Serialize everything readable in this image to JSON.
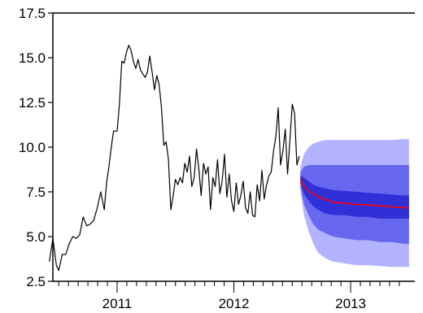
{
  "chart_data": {
    "type": "line",
    "title": "",
    "xlabel": "",
    "ylabel": "",
    "ylim": [
      2.5,
      17.5
    ],
    "yticks": [
      2.5,
      5.0,
      7.5,
      10.0,
      12.5,
      15.0,
      17.5
    ],
    "ytick_labels": [
      "2.5",
      "5.0",
      "7.5",
      "10.0",
      "12.5",
      "15.0",
      "17.5"
    ],
    "xlim": [
      2010.45,
      2013.55
    ],
    "x_year_labels": [
      {
        "label": "2011",
        "x": 2011.0
      },
      {
        "label": "2012",
        "x": 2012.0
      },
      {
        "label": "2013",
        "x": 2013.0
      }
    ],
    "grid": false,
    "legend": "none",
    "colors": {
      "history": "#000000",
      "forecast_median": "#ff0000",
      "band_90": "#b3b3ff",
      "band_70": "#6666ee",
      "band_50": "#3030d8",
      "axis": "#000000"
    },
    "series": [
      {
        "role": "history",
        "points": [
          [
            2010.42,
            3.6
          ],
          [
            2010.45,
            4.9
          ],
          [
            2010.48,
            3.4
          ],
          [
            2010.5,
            3.1
          ],
          [
            2010.53,
            4.0
          ],
          [
            2010.56,
            4.0
          ],
          [
            2010.59,
            4.6
          ],
          [
            2010.62,
            5.0
          ],
          [
            2010.65,
            4.9
          ],
          [
            2010.68,
            5.1
          ],
          [
            2010.71,
            6.1
          ],
          [
            2010.74,
            5.6
          ],
          [
            2010.77,
            5.7
          ],
          [
            2010.8,
            5.9
          ],
          [
            2010.83,
            6.6
          ],
          [
            2010.86,
            7.5
          ],
          [
            2010.89,
            6.5
          ],
          [
            2010.91,
            8.0
          ],
          [
            2010.93,
            8.9
          ],
          [
            2010.95,
            10.0
          ],
          [
            2010.97,
            10.9
          ],
          [
            2011.0,
            10.9
          ],
          [
            2011.02,
            12.4
          ],
          [
            2011.04,
            14.8
          ],
          [
            2011.06,
            14.7
          ],
          [
            2011.08,
            15.3
          ],
          [
            2011.1,
            15.7
          ],
          [
            2011.12,
            15.4
          ],
          [
            2011.14,
            14.8
          ],
          [
            2011.16,
            14.4
          ],
          [
            2011.18,
            14.9
          ],
          [
            2011.2,
            14.3
          ],
          [
            2011.22,
            14.1
          ],
          [
            2011.24,
            13.9
          ],
          [
            2011.26,
            14.2
          ],
          [
            2011.28,
            15.1
          ],
          [
            2011.3,
            14.2
          ],
          [
            2011.32,
            13.2
          ],
          [
            2011.34,
            14.0
          ],
          [
            2011.36,
            13.5
          ],
          [
            2011.38,
            12.2
          ],
          [
            2011.4,
            10.1
          ],
          [
            2011.42,
            10.3
          ],
          [
            2011.44,
            9.3
          ],
          [
            2011.46,
            6.5
          ],
          [
            2011.48,
            7.3
          ],
          [
            2011.5,
            8.2
          ],
          [
            2011.52,
            7.9
          ],
          [
            2011.54,
            8.3
          ],
          [
            2011.56,
            8.0
          ],
          [
            2011.58,
            9.1
          ],
          [
            2011.6,
            8.6
          ],
          [
            2011.62,
            9.5
          ],
          [
            2011.64,
            7.8
          ],
          [
            2011.66,
            8.3
          ],
          [
            2011.68,
            9.9
          ],
          [
            2011.7,
            8.8
          ],
          [
            2011.72,
            7.3
          ],
          [
            2011.74,
            9.1
          ],
          [
            2011.76,
            8.5
          ],
          [
            2011.78,
            8.9
          ],
          [
            2011.8,
            6.5
          ],
          [
            2011.82,
            8.3
          ],
          [
            2011.84,
            7.8
          ],
          [
            2011.86,
            9.3
          ],
          [
            2011.88,
            7.4
          ],
          [
            2011.9,
            8.1
          ],
          [
            2011.92,
            9.6
          ],
          [
            2011.94,
            7.2
          ],
          [
            2011.96,
            8.5
          ],
          [
            2011.98,
            7.0
          ],
          [
            2012.0,
            6.4
          ],
          [
            2012.02,
            8.0
          ],
          [
            2012.04,
            6.8
          ],
          [
            2012.06,
            7.3
          ],
          [
            2012.08,
            8.1
          ],
          [
            2012.1,
            6.6
          ],
          [
            2012.12,
            6.3
          ],
          [
            2012.14,
            7.5
          ],
          [
            2012.16,
            6.2
          ],
          [
            2012.18,
            6.1
          ],
          [
            2012.2,
            7.9
          ],
          [
            2012.22,
            7.0
          ],
          [
            2012.24,
            8.7
          ],
          [
            2012.26,
            7.1
          ],
          [
            2012.28,
            7.9
          ],
          [
            2012.3,
            8.4
          ],
          [
            2012.32,
            8.6
          ],
          [
            2012.34,
            9.8
          ],
          [
            2012.36,
            10.6
          ],
          [
            2012.38,
            12.2
          ],
          [
            2012.4,
            9.0
          ],
          [
            2012.42,
            9.8
          ],
          [
            2012.44,
            11.0
          ],
          [
            2012.46,
            8.5
          ],
          [
            2012.48,
            10.4
          ],
          [
            2012.5,
            12.4
          ],
          [
            2012.52,
            11.9
          ],
          [
            2012.54,
            9.0
          ],
          [
            2012.56,
            9.5
          ]
        ]
      },
      {
        "role": "forecast_median",
        "points": [
          [
            2012.57,
            8.2
          ],
          [
            2012.59,
            7.9
          ],
          [
            2012.61,
            7.8
          ],
          [
            2012.63,
            7.6
          ],
          [
            2012.65,
            7.5
          ],
          [
            2012.67,
            7.4
          ],
          [
            2012.69,
            7.35
          ],
          [
            2012.71,
            7.3
          ],
          [
            2012.73,
            7.2
          ],
          [
            2012.75,
            7.15
          ],
          [
            2012.78,
            7.1
          ],
          [
            2012.81,
            7.0
          ],
          [
            2012.84,
            6.95
          ],
          [
            2012.87,
            6.9
          ],
          [
            2012.9,
            6.9
          ],
          [
            2012.93,
            6.85
          ],
          [
            2012.96,
            6.85
          ],
          [
            2012.99,
            6.85
          ],
          [
            2013.02,
            6.8
          ],
          [
            2013.05,
            6.8
          ],
          [
            2013.08,
            6.78
          ],
          [
            2013.11,
            6.78
          ],
          [
            2013.14,
            6.77
          ],
          [
            2013.17,
            6.76
          ],
          [
            2013.2,
            6.75
          ],
          [
            2013.23,
            6.72
          ],
          [
            2013.26,
            6.72
          ],
          [
            2013.29,
            6.7
          ],
          [
            2013.32,
            6.68
          ],
          [
            2013.35,
            6.66
          ],
          [
            2013.38,
            6.65
          ],
          [
            2013.41,
            6.63
          ],
          [
            2013.44,
            6.62
          ],
          [
            2013.47,
            6.62
          ],
          [
            2013.5,
            6.6
          ]
        ]
      }
    ],
    "bands": [
      {
        "role": "band_90",
        "x": [
          2012.57,
          2012.6,
          2012.64,
          2012.68,
          2012.72,
          2012.78,
          2012.85,
          2012.95,
          2013.05,
          2013.15,
          2013.25,
          2013.35,
          2013.45,
          2013.5
        ],
        "lower": [
          7.6,
          6.2,
          5.3,
          4.6,
          4.1,
          3.8,
          3.6,
          3.5,
          3.4,
          3.4,
          3.35,
          3.3,
          3.3,
          3.3
        ],
        "upper": [
          8.9,
          9.6,
          10.0,
          10.2,
          10.3,
          10.4,
          10.4,
          10.4,
          10.4,
          10.4,
          10.4,
          10.4,
          10.45,
          10.45
        ]
      },
      {
        "role": "band_70",
        "x": [
          2012.57,
          2012.6,
          2012.64,
          2012.68,
          2012.72,
          2012.78,
          2012.85,
          2012.95,
          2013.05,
          2013.15,
          2013.25,
          2013.35,
          2013.45,
          2013.5
        ],
        "lower": [
          7.8,
          6.8,
          6.2,
          5.7,
          5.4,
          5.2,
          5.0,
          4.9,
          4.8,
          4.8,
          4.7,
          4.7,
          4.6,
          4.6
        ],
        "upper": [
          8.6,
          8.9,
          9.0,
          9.0,
          9.0,
          9.0,
          9.0,
          9.0,
          9.0,
          9.0,
          9.0,
          9.0,
          9.0,
          9.0
        ]
      },
      {
        "role": "band_50",
        "x": [
          2012.57,
          2012.6,
          2012.64,
          2012.68,
          2012.72,
          2012.78,
          2012.85,
          2012.95,
          2013.05,
          2013.15,
          2013.25,
          2013.35,
          2013.45,
          2013.5
        ],
        "lower": [
          8.0,
          7.4,
          7.0,
          6.7,
          6.5,
          6.3,
          6.2,
          6.2,
          6.1,
          6.1,
          6.0,
          6.0,
          6.0,
          6.0
        ],
        "upper": [
          8.4,
          8.3,
          8.1,
          7.9,
          7.8,
          7.7,
          7.6,
          7.55,
          7.5,
          7.45,
          7.4,
          7.35,
          7.3,
          7.3
        ]
      }
    ]
  }
}
